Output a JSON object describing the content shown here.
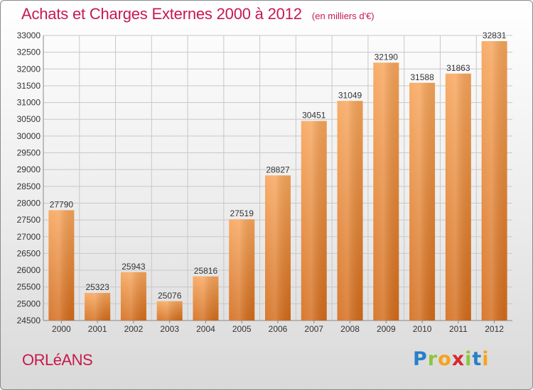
{
  "header": {
    "title": "Achats et Charges Externes 2000 à 2012",
    "subtitle": "(en milliers d'€)"
  },
  "footer": {
    "city": "ORLéANS",
    "logo_letters": [
      "P",
      "r",
      "o",
      "x",
      "i",
      "t",
      "i"
    ],
    "logo_colors": [
      "#2a7fc9",
      "#8cc63f",
      "#f7a21b",
      "#d7282f",
      "#8cc63f",
      "#2a7fc9",
      "#f7a21b"
    ]
  },
  "colors": {
    "title": "#c8194f",
    "bar_light": "#f7a55a",
    "bar_dark": "#d36b1a",
    "axis": "#888888",
    "grid": "#c8c8c8"
  },
  "chart_data": {
    "type": "bar",
    "title": "Achats et Charges Externes 2000 à 2012",
    "subtitle": "(en milliers d'€)",
    "categories": [
      "2000",
      "2001",
      "2002",
      "2003",
      "2004",
      "2005",
      "2006",
      "2007",
      "2008",
      "2009",
      "2010",
      "2011",
      "2012"
    ],
    "values": [
      27790,
      25323,
      25943,
      25076,
      25816,
      27519,
      28827,
      30451,
      31049,
      32190,
      31588,
      31863,
      32831
    ],
    "ylim": [
      24500,
      33000
    ],
    "yticks": [
      24500,
      25000,
      25500,
      26000,
      26500,
      27000,
      27500,
      28000,
      28500,
      29000,
      29500,
      30000,
      30500,
      31000,
      31500,
      32000,
      32500,
      33000
    ],
    "grid": true,
    "xlabel": "",
    "ylabel": ""
  }
}
